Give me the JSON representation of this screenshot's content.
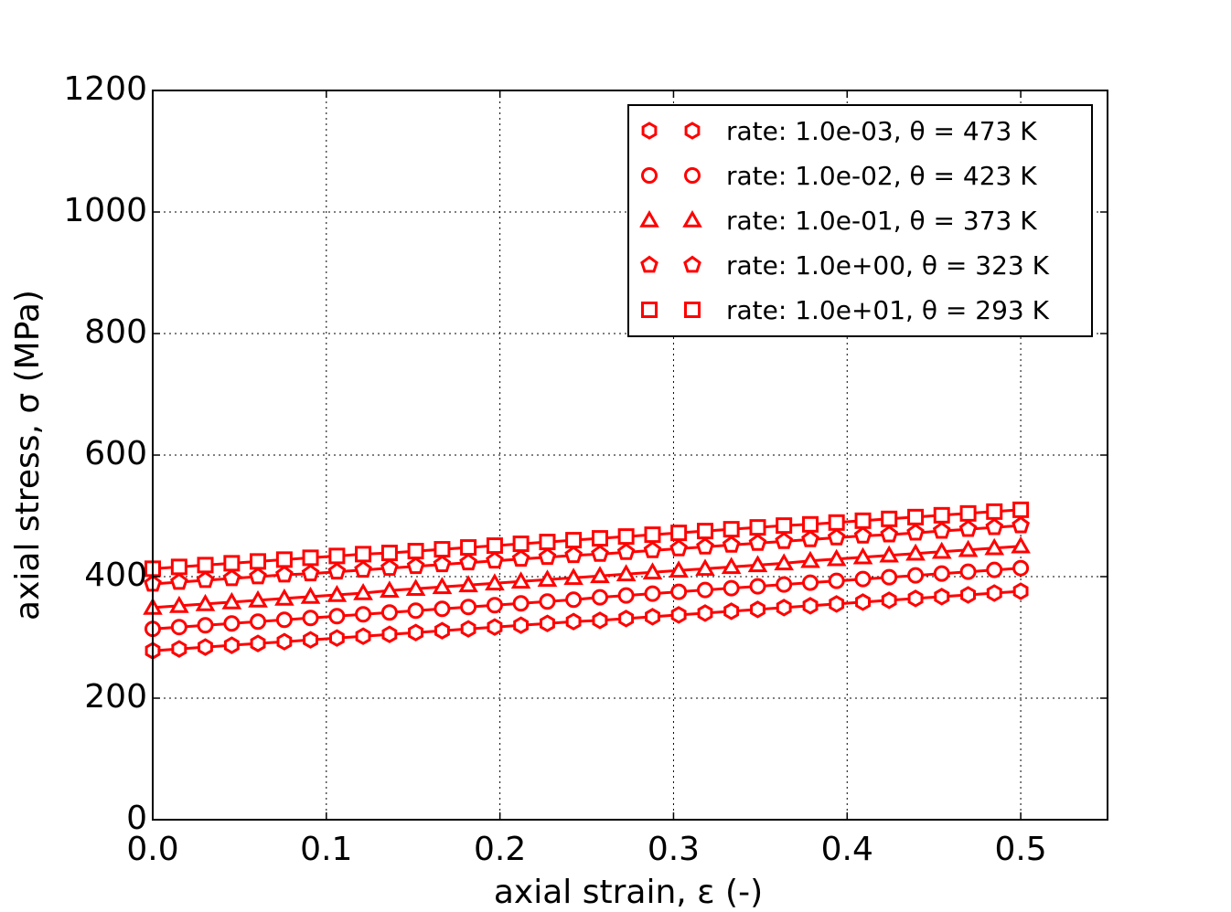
{
  "chart_data": {
    "type": "line",
    "title": "",
    "xlabel": "axial strain, ε (-)",
    "ylabel": "axial stress, σ (MPa)",
    "xlim": [
      0.0,
      0.55
    ],
    "ylim": [
      0,
      1200
    ],
    "xticks": [
      "0.0",
      "0.1",
      "0.2",
      "0.3",
      "0.4",
      "0.5"
    ],
    "xtick_values": [
      0.0,
      0.1,
      0.2,
      0.3,
      0.4,
      0.5
    ],
    "yticks": [
      "0",
      "200",
      "400",
      "600",
      "800",
      "1000",
      "1200"
    ],
    "ytick_values": [
      0,
      200,
      400,
      600,
      800,
      1000,
      1200
    ],
    "grid": true,
    "legend_placement": "top-right",
    "color": "#ff0000",
    "x": [
      0,
      0.0152,
      0.0303,
      0.0455,
      0.0606,
      0.0758,
      0.0909,
      0.1061,
      0.1212,
      0.1364,
      0.1515,
      0.1667,
      0.1818,
      0.197,
      0.2121,
      0.2273,
      0.2424,
      0.2576,
      0.2727,
      0.2879,
      0.303,
      0.3182,
      0.3333,
      0.3485,
      0.3636,
      0.3788,
      0.3939,
      0.4091,
      0.4242,
      0.4394,
      0.4545,
      0.4697,
      0.4848,
      0.5
    ],
    "series": [
      {
        "name": "rate: 1.0e-03, θ = 473 K",
        "marker": "hexagon",
        "values": [
          278,
          281,
          284,
          287,
          290,
          293,
          296,
          299,
          302,
          305,
          308,
          311,
          314,
          317,
          320,
          323,
          326,
          328,
          331,
          334,
          337,
          340,
          343,
          346,
          349,
          352,
          355,
          358,
          361,
          364,
          367,
          370,
          373,
          376
        ]
      },
      {
        "name": "rate: 1.0e-02, θ = 423 K",
        "marker": "circle",
        "values": [
          314,
          317,
          320,
          323,
          326,
          329,
          332,
          335,
          338,
          341,
          344,
          347,
          350,
          353,
          356,
          359,
          362,
          366,
          369,
          372,
          375,
          378,
          381,
          384,
          387,
          390,
          393,
          396,
          399,
          402,
          405,
          408,
          411,
          414
        ]
      },
      {
        "name": "rate: 1.0e-01, θ = 373 K",
        "marker": "triangle",
        "values": [
          349,
          352,
          355,
          358,
          361,
          364,
          367,
          370,
          373,
          377,
          380,
          383,
          386,
          389,
          392,
          395,
          398,
          401,
          404,
          407,
          410,
          413,
          416,
          419,
          422,
          426,
          429,
          432,
          435,
          438,
          441,
          444,
          447,
          450
        ]
      },
      {
        "name": "rate: 1.0e+00, θ = 323 K",
        "marker": "pentagon",
        "values": [
          388,
          391,
          394,
          397,
          400,
          403,
          405,
          408,
          411,
          414,
          417,
          420,
          423,
          426,
          429,
          432,
          435,
          437,
          440,
          443,
          446,
          449,
          452,
          455,
          458,
          461,
          464,
          467,
          469,
          472,
          475,
          478,
          481,
          484
        ]
      },
      {
        "name": "rate: 1.0e+01, θ = 293 K",
        "marker": "square",
        "values": [
          413,
          416,
          419,
          422,
          425,
          428,
          431,
          434,
          437,
          439,
          442,
          445,
          448,
          451,
          454,
          457,
          460,
          463,
          466,
          469,
          472,
          475,
          478,
          481,
          484,
          486,
          489,
          492,
          495,
          498,
          501,
          504,
          507,
          510
        ]
      }
    ]
  }
}
